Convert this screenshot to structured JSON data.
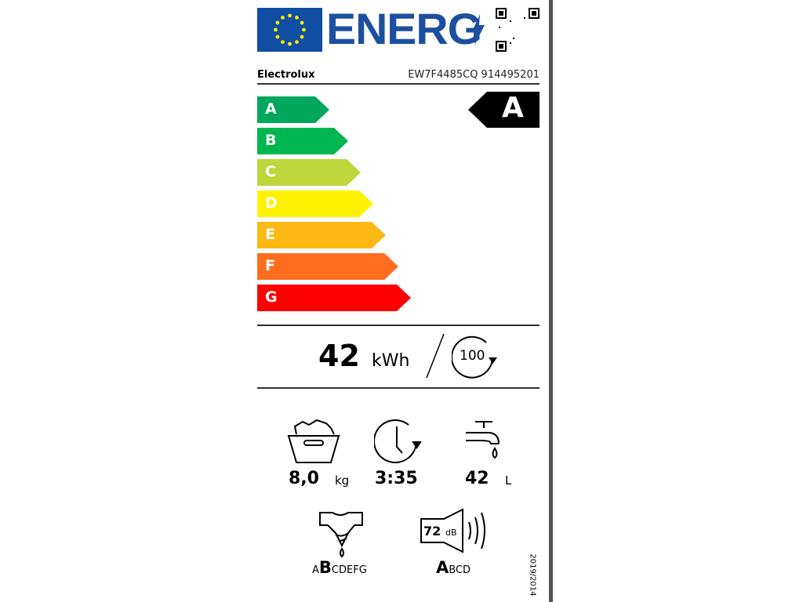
{
  "header": {
    "logo_text": "ENERG",
    "supplier": "Electrolux",
    "model": "EW7F4485CQ 914495201"
  },
  "scale": {
    "classes": [
      {
        "letter": "A",
        "color": "#00a75d"
      },
      {
        "letter": "B",
        "color": "#00b74f"
      },
      {
        "letter": "C",
        "color": "#bcd63b"
      },
      {
        "letter": "D",
        "color": "#fff200"
      },
      {
        "letter": "E",
        "color": "#fcb813"
      },
      {
        "letter": "F",
        "color": "#ff6d1f"
      },
      {
        "letter": "G",
        "color": "#ff0000"
      }
    ],
    "rating": "A"
  },
  "energy": {
    "value": "42",
    "unit": "kWh",
    "cycles": "100"
  },
  "specs": {
    "capacity": {
      "value": "8,0",
      "unit": "kg",
      "icon": "laundry-basket-icon"
    },
    "duration": {
      "value": "3:35",
      "icon": "clock-icon"
    },
    "water": {
      "value": "42",
      "unit": "L",
      "icon": "tap-icon"
    },
    "spin_class": {
      "first": "A",
      "selected": "B",
      "rest": "CDEFG",
      "icon": "spin-drying-shirt-icon"
    },
    "noise": {
      "value": "72",
      "unit": "dB",
      "selected": "A",
      "rest": "BCD",
      "icon": "speaker-icon"
    }
  },
  "regulation": "2019/2014"
}
